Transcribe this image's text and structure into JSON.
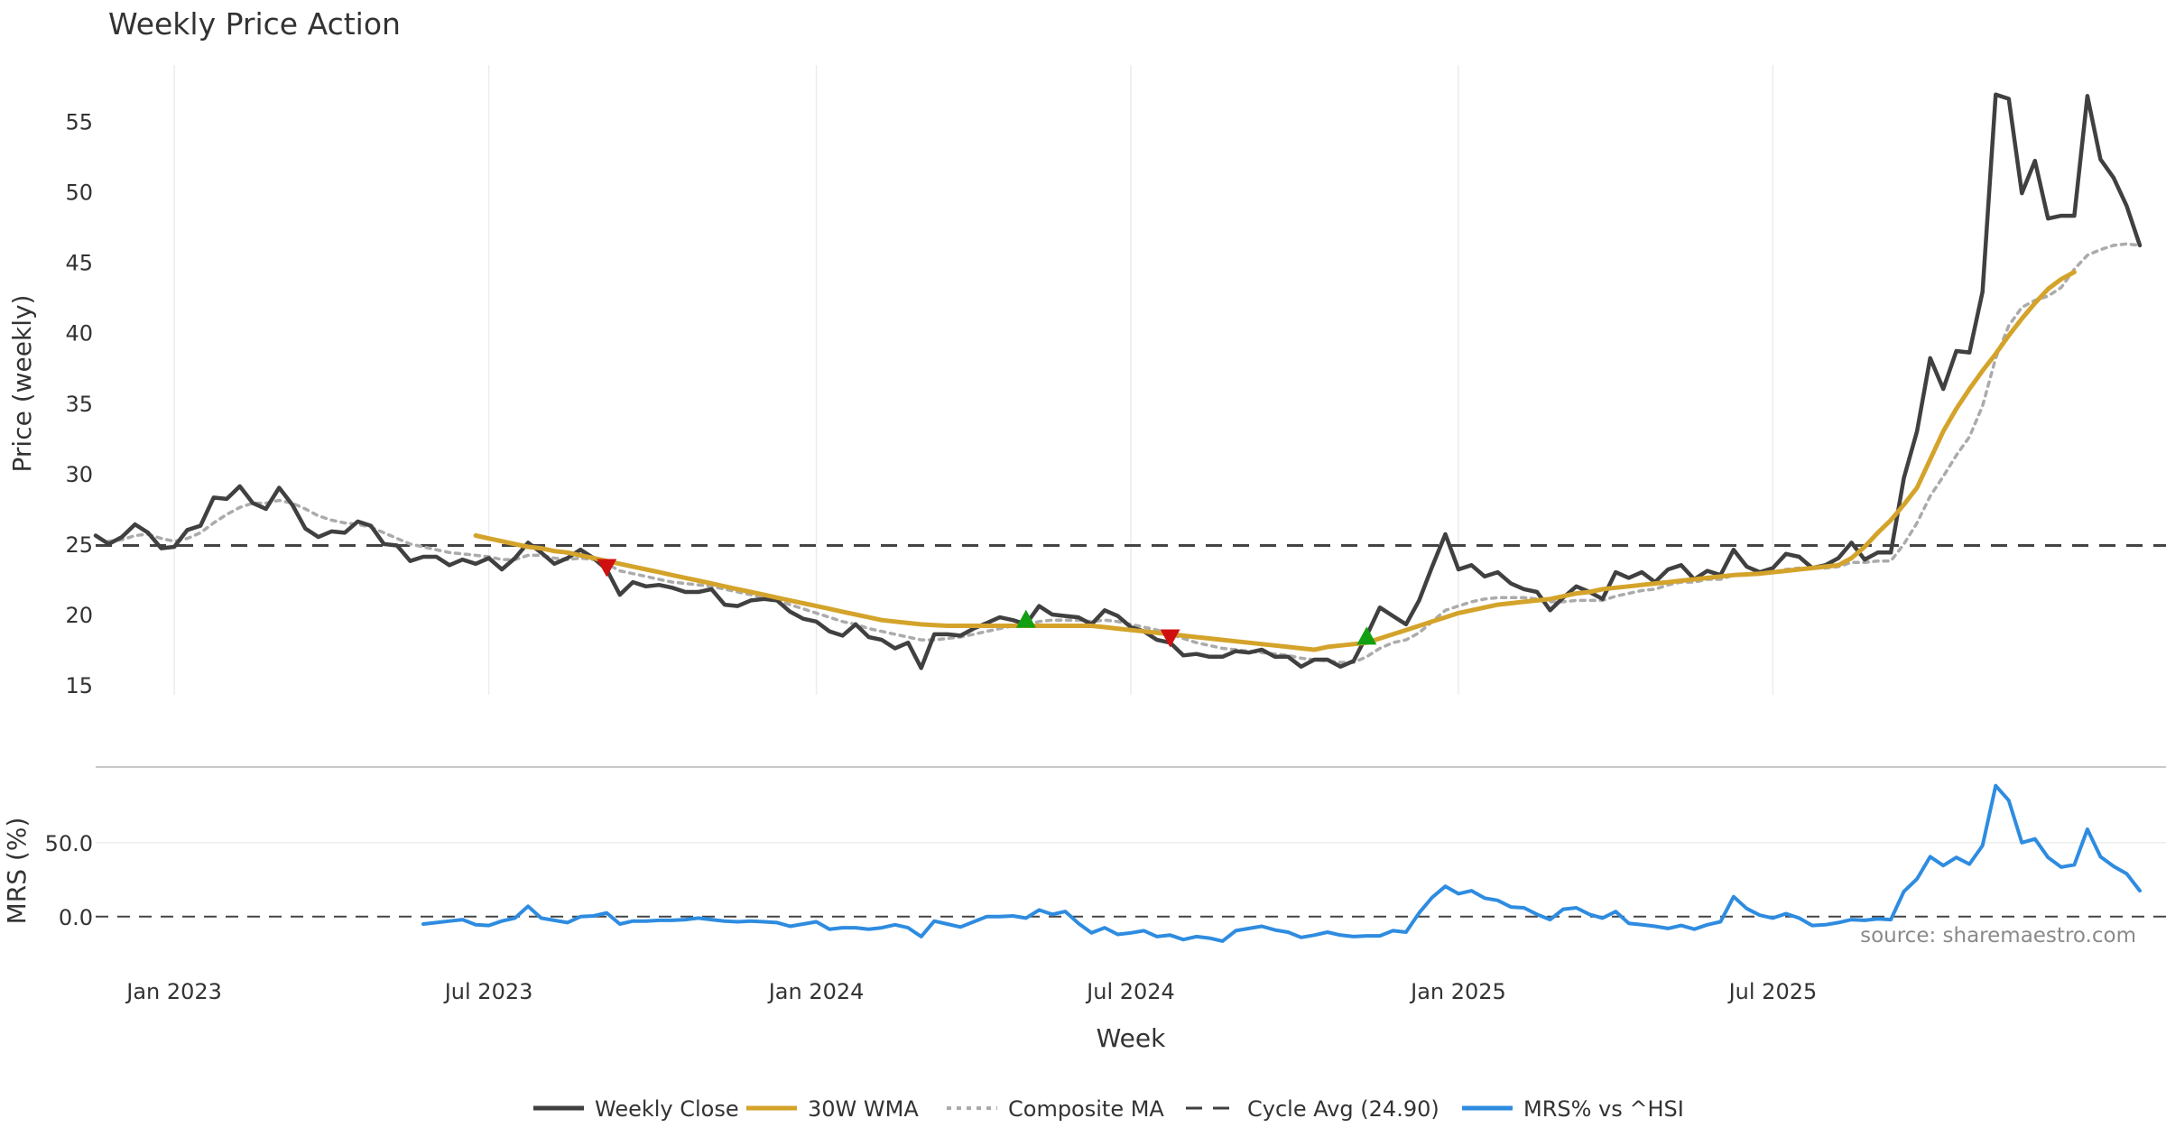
{
  "chart_data": {
    "type": "line",
    "title": "Weekly Price Action",
    "xlabel": "Week",
    "ylabel": "Price (weekly)",
    "ylabel2": "MRS (%)",
    "source_note": "source: sharemaestro.com",
    "x_tick_labels": [
      "Jan 2023",
      "Jul 2023",
      "Jan 2024",
      "Jul 2024",
      "Jan 2025",
      "Jul 2025"
    ],
    "y_ticks": [
      15,
      20,
      25,
      30,
      35,
      40,
      45,
      50,
      55
    ],
    "y_tick_labels": [
      "15",
      "20",
      "25",
      "30",
      "35",
      "40",
      "45",
      "50",
      "55"
    ],
    "ylim": [
      14.3,
      59
    ],
    "y2_ticks": [
      0,
      50
    ],
    "y2_tick_labels": [
      "0.0",
      "50.0"
    ],
    "y2lim": [
      -30,
      95
    ],
    "x_range_weeks": [
      0,
      158
    ],
    "x_tick_weeks": [
      6,
      30,
      55,
      79,
      104,
      128
    ],
    "cycle_avg": 24.9,
    "series": [
      {
        "name": "Weekly Close",
        "color": "#404040",
        "values": [
          25.6,
          25.0,
          25.5,
          26.4,
          25.8,
          24.7,
          24.8,
          26.0,
          26.3,
          28.3,
          28.2,
          29.1,
          27.9,
          27.5,
          29.0,
          27.8,
          26.1,
          25.5,
          25.9,
          25.8,
          26.6,
          26.3,
          25.0,
          24.9,
          23.8,
          24.1,
          24.1,
          23.5,
          23.9,
          23.6,
          24.0,
          23.2,
          24.0,
          25.1,
          24.4,
          23.6,
          24.0,
          24.6,
          24.0,
          23.2,
          21.4,
          22.3,
          22.0,
          22.1,
          21.9,
          21.6,
          21.6,
          21.8,
          20.7,
          20.6,
          21.0,
          21.1,
          21.0,
          20.2,
          19.7,
          19.5,
          18.8,
          18.5,
          19.3,
          18.4,
          18.2,
          17.6,
          18.0,
          16.2,
          18.6,
          18.6,
          18.5,
          19.0,
          19.4,
          19.8,
          19.6,
          19.3,
          20.6,
          20.0,
          19.9,
          19.8,
          19.3,
          20.3,
          19.9,
          19.1,
          18.8,
          18.2,
          18.0,
          17.1,
          17.2,
          17.0,
          17.0,
          17.4,
          17.3,
          17.5,
          17.0,
          17.0,
          16.3,
          16.8,
          16.8,
          16.3,
          16.7,
          18.5,
          20.5,
          19.9,
          19.3,
          21.0,
          23.4,
          25.7,
          23.2,
          23.5,
          22.7,
          23.0,
          22.2,
          21.8,
          21.6,
          20.3,
          21.2,
          22.0,
          21.6,
          21.1,
          23.0,
          22.6,
          23.0,
          22.3,
          23.2,
          23.5,
          22.5,
          23.1,
          22.8,
          24.6,
          23.4,
          23.0,
          23.3,
          24.3,
          24.1,
          23.3,
          23.5,
          24.0,
          25.1,
          23.9,
          24.4,
          24.4,
          29.7,
          33.0,
          38.2,
          36.0,
          38.7,
          38.6,
          42.9,
          56.9,
          56.6,
          49.9,
          52.2,
          48.1,
          48.3,
          48.3,
          56.8,
          52.3,
          51.0,
          49.0,
          46.2
        ]
      },
      {
        "name": "30W WMA",
        "color": "#D4A32A",
        "values": [
          null,
          null,
          null,
          null,
          null,
          null,
          null,
          null,
          null,
          null,
          null,
          null,
          null,
          null,
          null,
          null,
          null,
          null,
          null,
          null,
          null,
          null,
          null,
          null,
          null,
          null,
          null,
          null,
          null,
          25.6,
          25.4,
          25.2,
          25.0,
          24.8,
          24.7,
          24.5,
          24.4,
          24.2,
          24.0,
          23.8,
          23.6,
          23.4,
          23.2,
          23.0,
          22.8,
          22.6,
          22.4,
          22.2,
          22.0,
          21.8,
          21.6,
          21.4,
          21.2,
          21.0,
          20.8,
          20.6,
          20.4,
          20.2,
          20.0,
          19.8,
          19.6,
          19.5,
          19.4,
          19.3,
          19.25,
          19.2,
          19.2,
          19.2,
          19.2,
          19.2,
          19.2,
          19.2,
          19.2,
          19.2,
          19.2,
          19.2,
          19.2,
          19.1,
          19.0,
          18.9,
          18.8,
          18.7,
          18.6,
          18.5,
          18.4,
          18.3,
          18.2,
          18.1,
          18.0,
          17.9,
          17.8,
          17.7,
          17.6,
          17.5,
          17.7,
          17.8,
          17.9,
          18.0,
          18.3,
          18.6,
          18.9,
          19.2,
          19.5,
          19.8,
          20.1,
          20.3,
          20.5,
          20.7,
          20.8,
          20.9,
          21.0,
          21.1,
          21.3,
          21.5,
          21.6,
          21.8,
          21.9,
          22.0,
          22.1,
          22.2,
          22.3,
          22.4,
          22.5,
          22.6,
          22.7,
          22.8,
          22.85,
          22.9,
          23.0,
          23.1,
          23.2,
          23.3,
          23.4,
          23.5,
          24.0,
          24.8,
          25.8,
          26.7,
          27.8,
          29.0,
          31.0,
          33.0,
          34.6,
          36.0,
          37.3,
          38.5,
          39.8,
          41.0,
          42.1,
          43.1,
          43.8,
          44.3
        ]
      },
      {
        "name": "Composite MA",
        "color": "#ABABAB",
        "values": [
          null,
          25.2,
          25.3,
          25.6,
          25.7,
          25.4,
          25.2,
          25.4,
          25.8,
          26.5,
          27.1,
          27.6,
          27.9,
          27.9,
          28.1,
          27.9,
          27.5,
          27.0,
          26.7,
          26.5,
          26.4,
          26.2,
          25.8,
          25.4,
          25.0,
          24.8,
          24.6,
          24.4,
          24.3,
          24.2,
          24.1,
          23.9,
          23.9,
          24.2,
          24.2,
          24.0,
          23.9,
          24.0,
          23.9,
          23.6,
          23.1,
          22.9,
          22.7,
          22.5,
          22.3,
          22.2,
          22.1,
          22.0,
          21.8,
          21.6,
          21.4,
          21.2,
          21.0,
          20.7,
          20.4,
          20.1,
          19.8,
          19.5,
          19.3,
          19.0,
          18.8,
          18.6,
          18.4,
          18.2,
          18.2,
          18.3,
          18.4,
          18.6,
          18.8,
          19.0,
          19.2,
          19.3,
          19.5,
          19.6,
          19.6,
          19.6,
          19.5,
          19.6,
          19.5,
          19.3,
          19.1,
          18.9,
          18.6,
          18.3,
          18.0,
          17.8,
          17.6,
          17.5,
          17.4,
          17.3,
          17.2,
          17.1,
          16.9,
          16.8,
          16.7,
          16.6,
          16.6,
          17.0,
          17.6,
          18.0,
          18.2,
          18.7,
          19.5,
          20.3,
          20.6,
          20.9,
          21.1,
          21.2,
          21.2,
          21.2,
          21.1,
          20.9,
          20.9,
          21.0,
          21.0,
          21.0,
          21.3,
          21.5,
          21.7,
          21.8,
          22.1,
          22.3,
          22.3,
          22.5,
          22.5,
          22.8,
          22.9,
          22.9,
          23.0,
          23.2,
          23.3,
          23.3,
          23.3,
          23.4,
          23.7,
          23.7,
          23.8,
          23.8,
          25.0,
          26.5,
          28.4,
          29.8,
          31.3,
          32.6,
          34.8,
          38.2,
          40.5,
          41.8,
          42.3,
          42.6,
          43.2,
          44.5,
          45.5,
          45.9,
          46.2,
          46.3,
          46.2
        ]
      },
      {
        "name": "MRS% vs ^HSI",
        "color": "#2E8CE0",
        "axis": "secondary",
        "values": [
          null,
          null,
          null,
          null,
          null,
          null,
          null,
          null,
          null,
          null,
          null,
          null,
          null,
          null,
          null,
          null,
          null,
          null,
          null,
          null,
          null,
          null,
          null,
          null,
          null,
          -5.0,
          -4.0,
          -3.0,
          -2.0,
          -5.5,
          -6.0,
          -3.0,
          -1.0,
          7.0,
          -1.0,
          -2.5,
          -4.0,
          0.0,
          0.5,
          2.5,
          -5.0,
          -3.0,
          -3.0,
          -2.5,
          -2.5,
          -2.0,
          -1.0,
          -2.0,
          -3.0,
          -3.5,
          -3.0,
          -3.5,
          -4.0,
          -6.5,
          -5.0,
          -3.5,
          -8.5,
          -7.5,
          -7.5,
          -8.5,
          -7.5,
          -5.5,
          -7.5,
          -13.5,
          -3.0,
          -5.0,
          -7.0,
          -3.5,
          0.0,
          0.0,
          0.5,
          -1.0,
          4.5,
          1.5,
          3.5,
          -4.5,
          -11.0,
          -7.5,
          -12.0,
          -11.0,
          -9.5,
          -13.5,
          -12.5,
          -15.5,
          -13.5,
          -14.5,
          -16.5,
          -9.5,
          -8.0,
          -6.5,
          -9.0,
          -10.5,
          -14.0,
          -12.5,
          -10.5,
          -12.5,
          -13.5,
          -13.0,
          -13.0,
          -9.5,
          -10.5,
          2.5,
          13.0,
          20.5,
          15.5,
          17.5,
          12.5,
          11.0,
          6.5,
          6.0,
          1.5,
          -2.0,
          5.0,
          6.0,
          1.5,
          -1.0,
          3.5,
          -4.5,
          -5.5,
          -6.5,
          -8.0,
          -6.0,
          -8.5,
          -5.5,
          -3.5,
          13.5,
          5.5,
          1.0,
          -1.0,
          2.0,
          -1.0,
          -6.0,
          -5.5,
          -4.0,
          -2.0,
          -2.5,
          -1.5,
          -2.0,
          17.0,
          25.5,
          40.5,
          34.5,
          40.0,
          35.5,
          48.0,
          88.5,
          78.5,
          50.0,
          52.5,
          40.0,
          33.5,
          35.0,
          59.0,
          40.5,
          34.0,
          29.0,
          17.5
        ]
      }
    ],
    "signals": [
      {
        "type": "down",
        "week": 39,
        "value": 23.3,
        "color": "#D01010"
      },
      {
        "type": "up",
        "week": 71,
        "value": 19.7,
        "color": "#12A012"
      },
      {
        "type": "down",
        "week": 82,
        "value": 18.3,
        "color": "#D01010"
      },
      {
        "type": "up",
        "week": 97,
        "value": 18.5,
        "color": "#12A012"
      }
    ],
    "legend": [
      {
        "label": "Weekly Close",
        "style": "solid",
        "color": "#404040"
      },
      {
        "label": "30W WMA",
        "style": "solid",
        "color": "#D4A32A"
      },
      {
        "label": "Composite MA",
        "style": "dotted",
        "color": "#ABABAB"
      },
      {
        "label": "Cycle Avg (24.90)",
        "style": "dashed",
        "color": "#404040"
      },
      {
        "label": "MRS% vs ^HSI",
        "style": "solid",
        "color": "#2E8CE0"
      }
    ]
  }
}
